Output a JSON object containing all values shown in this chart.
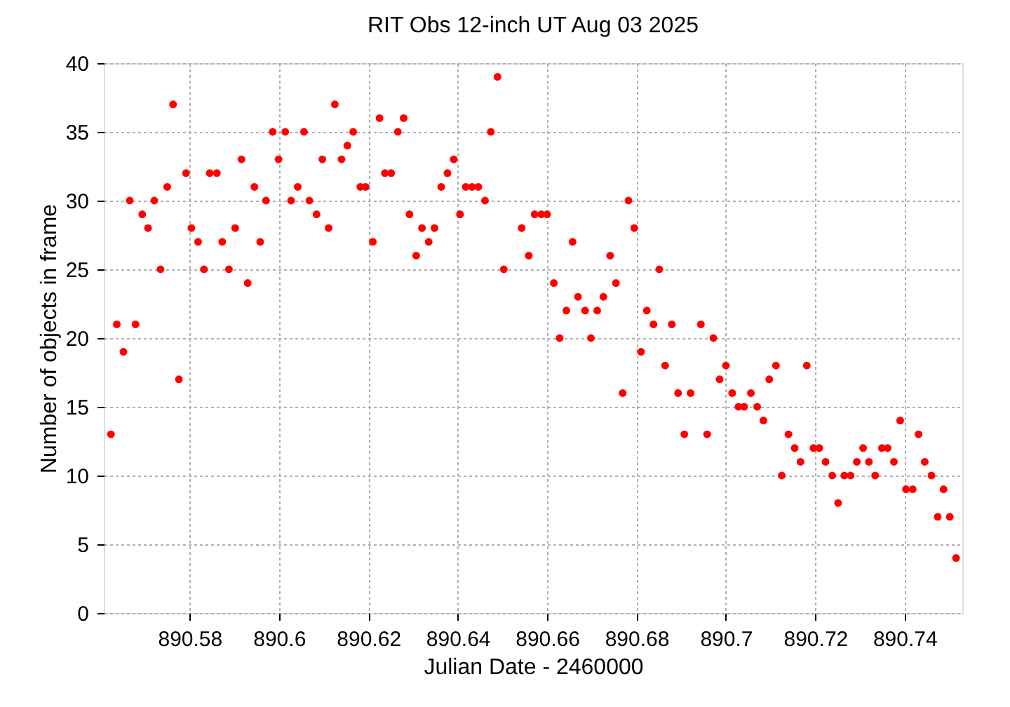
{
  "chart_data": {
    "type": "scatter",
    "title": "RIT Obs 12-inch UT Aug 03 2025",
    "xlabel": "Julian Date - 2460000",
    "ylabel": "Number of objects in frame",
    "xlim": [
      890.5608,
      890.7529
    ],
    "ylim": [
      0,
      40
    ],
    "xticks": [
      890.58,
      890.6,
      890.62,
      890.64,
      890.66,
      890.68,
      890.7,
      890.72,
      890.74
    ],
    "yticks": [
      0,
      5,
      10,
      15,
      20,
      25,
      30,
      35,
      40
    ],
    "grid": true,
    "marker": "circle",
    "legend": false,
    "series": [
      {
        "color": "#ff0000",
        "x": [
          890.5624,
          890.5637,
          890.5652,
          890.5666,
          890.5679,
          890.5694,
          890.5707,
          890.5721,
          890.5735,
          890.575,
          890.5763,
          890.5776,
          890.5792,
          890.5804,
          890.5819,
          890.5832,
          890.5845,
          890.5861,
          890.5873,
          890.5888,
          890.5902,
          890.5916,
          890.593,
          890.5945,
          890.5958,
          890.5971,
          890.5986,
          890.5999,
          890.6014,
          890.6027,
          890.6042,
          890.6056,
          890.6068,
          890.6084,
          890.6097,
          890.6111,
          890.6125,
          890.614,
          890.6153,
          890.6166,
          890.6182,
          890.6194,
          890.621,
          890.6225,
          890.6237,
          890.6251,
          890.6266,
          890.6279,
          890.6292,
          890.6307,
          890.632,
          890.6335,
          890.6348,
          890.6363,
          890.6377,
          890.6391,
          890.6405,
          890.6418,
          890.6432,
          890.6446,
          890.6461,
          890.6474,
          890.6489,
          890.6503,
          890.6543,
          890.6559,
          890.6572,
          890.6587,
          890.66,
          890.6615,
          890.6628,
          890.6643,
          890.6657,
          890.6669,
          890.6685,
          890.6698,
          890.6712,
          890.6726,
          890.6741,
          890.6754,
          890.6769,
          890.6782,
          890.6795,
          890.681,
          890.6823,
          890.6838,
          890.6851,
          890.6864,
          890.6879,
          890.6893,
          890.6907,
          890.6921,
          890.6944,
          890.6958,
          890.6972,
          890.6986,
          890.7,
          890.7014,
          890.7028,
          890.7041,
          890.7056,
          890.707,
          890.7084,
          890.7097,
          890.7112,
          890.7125,
          890.714,
          890.7154,
          890.7167,
          890.7181,
          890.7196,
          890.7209,
          890.7223,
          890.7238,
          890.7251,
          890.7265,
          890.7279,
          890.7293,
          890.7307,
          890.732,
          890.7334,
          890.7349,
          890.7362,
          890.7376,
          890.739,
          890.7403,
          890.7418,
          890.7431,
          890.7445,
          890.746,
          890.7474,
          890.7487,
          890.7501,
          890.7515
        ],
        "values": [
          13,
          21,
          19,
          30,
          21,
          29,
          28,
          30,
          25,
          31,
          37,
          17,
          32,
          28,
          27,
          25,
          32,
          32,
          27,
          25,
          28,
          33,
          24,
          31,
          27,
          30,
          35,
          33,
          35,
          30,
          31,
          35,
          30,
          29,
          33,
          28,
          37,
          33,
          34,
          35,
          31,
          31,
          27,
          36,
          32,
          32,
          35,
          36,
          29,
          26,
          28,
          27,
          28,
          31,
          32,
          33,
          29,
          31,
          31,
          31,
          30,
          35,
          39,
          25,
          28,
          26,
          29,
          29,
          29,
          24,
          20,
          22,
          27,
          23,
          22,
          20,
          22,
          23,
          26,
          24,
          16,
          30,
          28,
          19,
          22,
          21,
          25,
          18,
          21,
          16,
          13,
          16,
          21,
          13,
          20,
          17,
          18,
          16,
          15,
          15,
          16,
          15,
          14,
          17,
          18,
          10,
          13,
          12,
          11,
          18,
          12,
          12,
          11,
          10,
          8,
          10,
          10,
          11,
          12,
          11,
          10,
          12,
          12,
          11,
          14,
          9,
          9,
          13,
          11,
          10,
          7,
          9,
          7,
          4
        ]
      }
    ]
  }
}
